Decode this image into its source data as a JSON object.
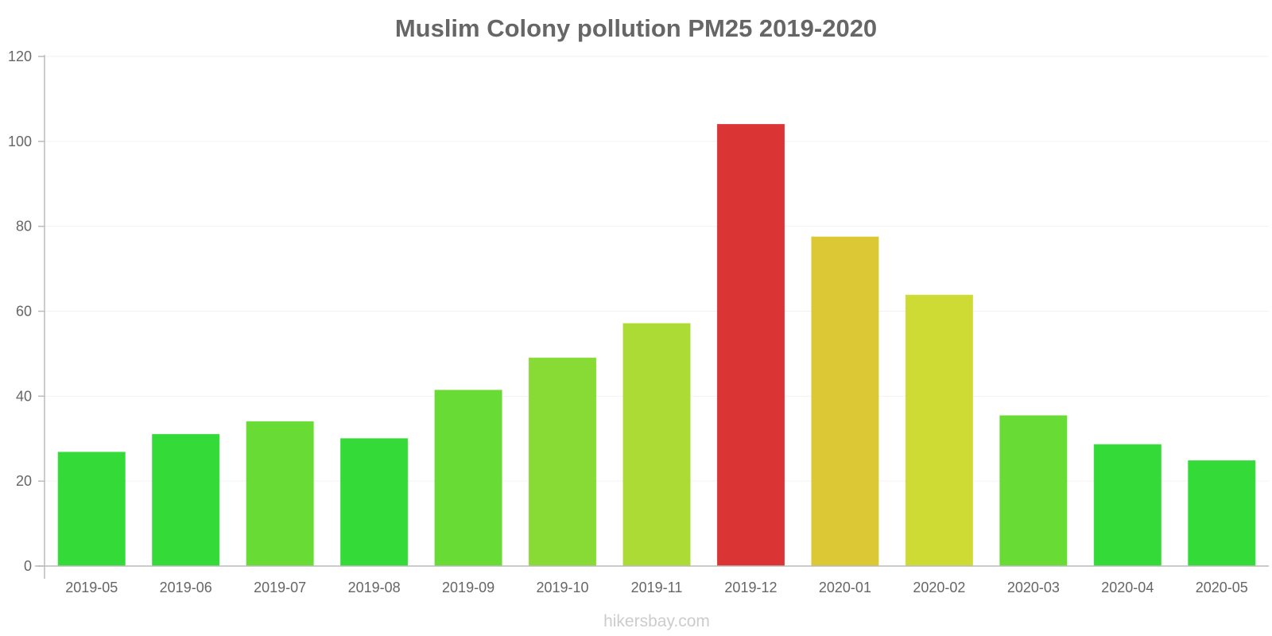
{
  "chart_data": {
    "type": "bar",
    "title": "Muslim Colony pollution PM25 2019-2020",
    "xlabel": "",
    "ylabel": "",
    "ylim": [
      0,
      120
    ],
    "y_ticks": [
      "0",
      "20",
      "40",
      "60",
      "80",
      "100",
      "120"
    ],
    "grid": true,
    "legend": "none",
    "categories": [
      "2019-05",
      "2019-06",
      "2019-07",
      "2019-08",
      "2019-09",
      "2019-10",
      "2019-11",
      "2019-12",
      "2020-01",
      "2020-02",
      "2020-03",
      "2020-04",
      "2020-05"
    ],
    "values": [
      26.8,
      31.0,
      34.0,
      30.0,
      41.4,
      49.0,
      57.1,
      104.0,
      77.5,
      63.8,
      35.4,
      28.6,
      24.8
    ],
    "colors": [
      "#34DB38",
      "#34DB38",
      "#68DB34",
      "#34DB38",
      "#68DB34",
      "#88DB34",
      "#ABDB34",
      "#DB3434",
      "#DBC834",
      "#CDDB34",
      "#68DB34",
      "#34DB38",
      "#34DB38"
    ]
  },
  "watermark": "hikersbay.com"
}
